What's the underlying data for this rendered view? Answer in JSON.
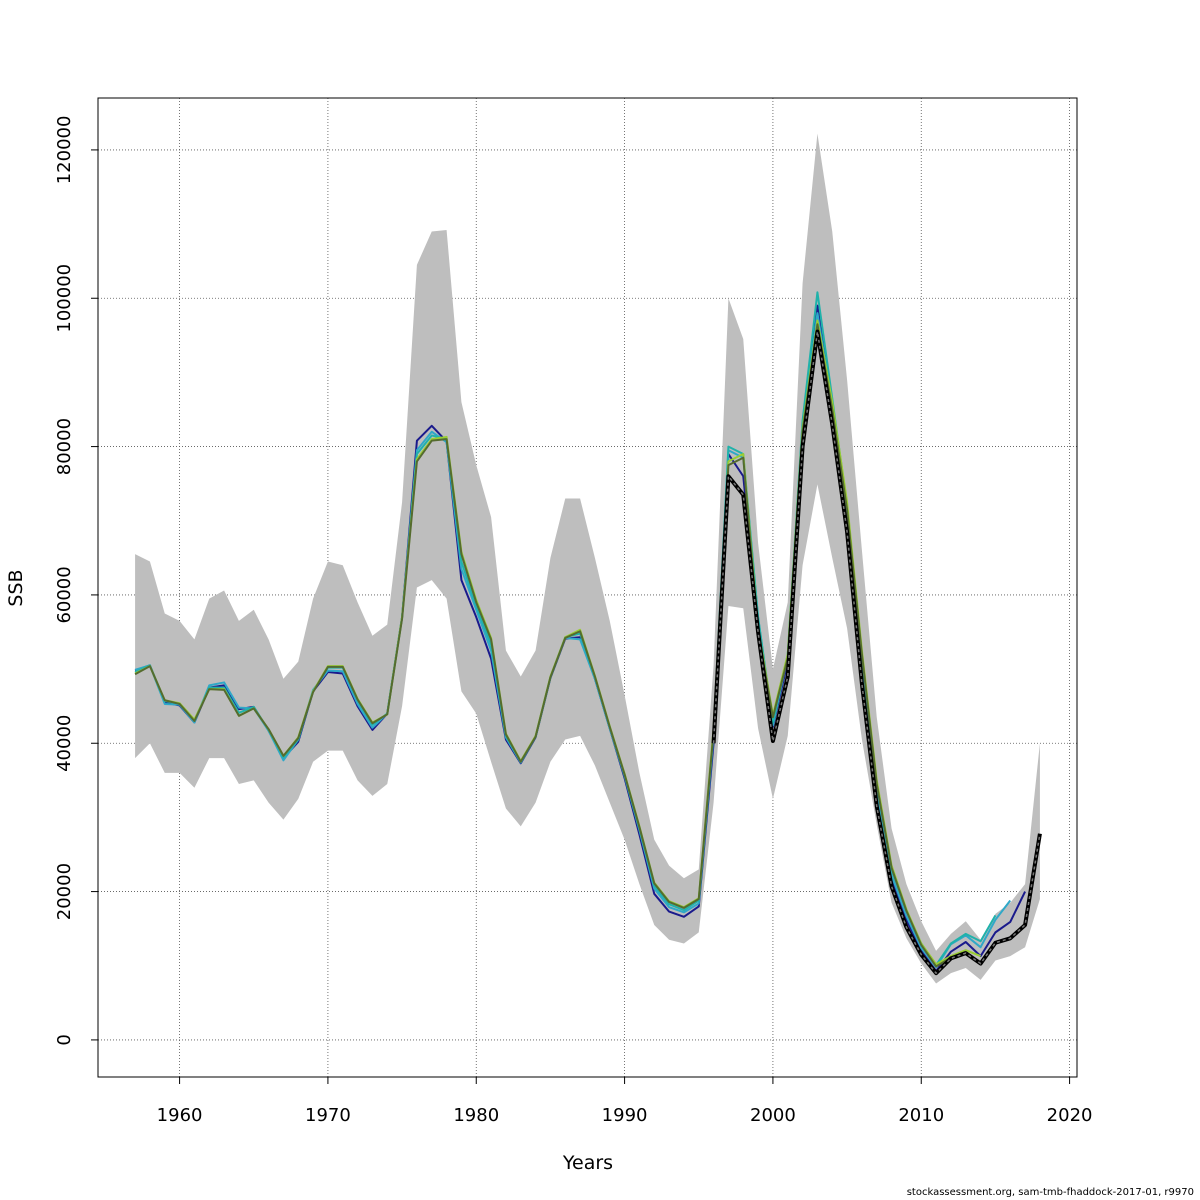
{
  "chart_data": {
    "type": "line",
    "title": "",
    "xlabel": "Years",
    "ylabel": "SSB",
    "xlim": [
      1954.5,
      2020.5
    ],
    "ylim": [
      -5000,
      127000
    ],
    "x_ticks": [
      1960,
      1970,
      1980,
      1990,
      2000,
      2010,
      2020
    ],
    "x_tick_labels": [
      "1960",
      "1970",
      "1980",
      "1990",
      "2000",
      "2010",
      "2020"
    ],
    "y_ticks": [
      0,
      20000,
      40000,
      60000,
      80000,
      100000,
      120000
    ],
    "y_tick_labels": [
      "0",
      "20000",
      "40000",
      "60000",
      "80000",
      "100000",
      "120000"
    ],
    "grid": true,
    "confidence_band": {
      "color": "#bebebe",
      "x": [
        1957,
        1958,
        1959,
        1960,
        1961,
        1962,
        1963,
        1964,
        1965,
        1966,
        1967,
        1968,
        1969,
        1970,
        1971,
        1972,
        1973,
        1974,
        1975,
        1976,
        1977,
        1978,
        1979,
        1980,
        1981,
        1982,
        1983,
        1984,
        1985,
        1986,
        1987,
        1988,
        1989,
        1990,
        1991,
        1992,
        1993,
        1994,
        1995,
        1996,
        1997,
        1998,
        1999,
        2000,
        2001,
        2002,
        2003,
        2004,
        2005,
        2006,
        2007,
        2008,
        2009,
        2010,
        2011,
        2012,
        2013,
        2014,
        2015,
        2016,
        2017,
        2018
      ],
      "lower": [
        38000,
        40000,
        36000,
        36000,
        34000,
        38000,
        38000,
        34500,
        35000,
        32000,
        29700,
        32500,
        37500,
        39000,
        39000,
        35000,
        32900,
        34500,
        45000,
        61000,
        62000,
        59500,
        47000,
        44000,
        37500,
        31200,
        28800,
        32000,
        37500,
        40500,
        41000,
        37000,
        32000,
        27000,
        21000,
        15500,
        13500,
        13000,
        14500,
        32000,
        58500,
        58200,
        42000,
        32500,
        41000,
        64000,
        74900,
        65000,
        55500,
        40500,
        29000,
        18500,
        13700,
        10300,
        7600,
        9000,
        9700,
        8100,
        10700,
        11300,
        12500,
        19000
      ],
      "upper": [
        65500,
        64500,
        57500,
        56500,
        54000,
        59500,
        60600,
        56500,
        58000,
        54000,
        48700,
        51000,
        59500,
        64500,
        64000,
        59000,
        54500,
        56000,
        72500,
        104500,
        109000,
        109200,
        86000,
        77500,
        70500,
        52500,
        49000,
        52500,
        65000,
        73000,
        73000,
        65000,
        56500,
        46500,
        36000,
        27000,
        23500,
        21800,
        23000,
        50500,
        100000,
        94500,
        67000,
        50000,
        59000,
        102000,
        122200,
        109000,
        89000,
        66000,
        43500,
        28500,
        21000,
        16000,
        12000,
        14300,
        16000,
        13500,
        17000,
        18500,
        21000,
        40000
      ]
    },
    "series": [
      {
        "color": "#1a1a8c",
        "dashed": false,
        "x": [
          1957,
          1958,
          1959,
          1960,
          1961,
          1962,
          1963,
          1964,
          1965,
          1966,
          1967,
          1968,
          1969,
          1970,
          1971,
          1972,
          1973,
          1974,
          1975,
          1976,
          1977,
          1978,
          1979,
          1980,
          1981,
          1982,
          1983,
          1984,
          1985,
          1986,
          1987,
          1988,
          1989,
          1990,
          1991,
          1992,
          1993,
          1994,
          1995,
          1996,
          1997,
          1998,
          1999,
          2000,
          2001,
          2002,
          2003,
          2004,
          2005,
          2006,
          2007,
          2008,
          2009,
          2010,
          2011,
          2012,
          2013,
          2014,
          2015,
          2016,
          2017
        ],
        "values": [
          49800,
          50500,
          45500,
          45100,
          42800,
          47500,
          47800,
          44600,
          44900,
          41700,
          38000,
          40200,
          47000,
          49600,
          49400,
          45000,
          41800,
          44000,
          57000,
          80800,
          82800,
          80700,
          62000,
          57000,
          51400,
          40500,
          37300,
          40800,
          48800,
          54100,
          54300,
          48700,
          42000,
          35300,
          27700,
          19700,
          17300,
          16600,
          18000,
          40000,
          79000,
          76000,
          56000,
          42200,
          51000,
          81500,
          99000,
          85000,
          70000,
          50000,
          33000,
          21800,
          16200,
          12000,
          9300,
          11900,
          13200,
          11300,
          14500,
          15900,
          20000
        ]
      },
      {
        "color": "#2fa8c8",
        "dashed": false,
        "x": [
          1957,
          1958,
          1959,
          1960,
          1961,
          1962,
          1963,
          1964,
          1965,
          1966,
          1967,
          1968,
          1969,
          1970,
          1971,
          1972,
          1973,
          1974,
          1975,
          1976,
          1977,
          1978,
          1979,
          1980,
          1981,
          1982,
          1983,
          1984,
          1985,
          1986,
          1987,
          1988,
          1989,
          1990,
          1991,
          1992,
          1993,
          1994,
          1995,
          1996,
          1997,
          1998,
          1999,
          2000,
          2001,
          2002,
          2003,
          2004,
          2005,
          2006,
          2007,
          2008,
          2009,
          2010,
          2011,
          2012,
          2013,
          2014,
          2015,
          2016
        ],
        "values": [
          49900,
          50500,
          45300,
          45200,
          42800,
          47800,
          48200,
          44800,
          44700,
          41700,
          37700,
          40500,
          47200,
          49800,
          49700,
          45300,
          42100,
          44000,
          57000,
          79500,
          82000,
          80600,
          63500,
          58000,
          52500,
          40800,
          37400,
          40900,
          48900,
          54200,
          54000,
          48700,
          42000,
          35600,
          28300,
          20400,
          17900,
          17200,
          18400,
          41000,
          79500,
          78500,
          57000,
          42400,
          51800,
          82500,
          98000,
          85500,
          71000,
          51000,
          33500,
          22200,
          16700,
          12400,
          9800,
          12900,
          14100,
          12500,
          16200,
          18800
        ]
      },
      {
        "color": "#20b2aa",
        "dashed": false,
        "x": [
          1957,
          1958,
          1959,
          1960,
          1961,
          1962,
          1963,
          1964,
          1965,
          1966,
          1967,
          1968,
          1969,
          1970,
          1971,
          1972,
          1973,
          1974,
          1975,
          1976,
          1977,
          1978,
          1979,
          1980,
          1981,
          1982,
          1983,
          1984,
          1985,
          1986,
          1987,
          1988,
          1989,
          1990,
          1991,
          1992,
          1993,
          1994,
          1995,
          1996,
          1997,
          1998,
          1999,
          2000,
          2001,
          2002,
          2003,
          2004,
          2005,
          2006,
          2007,
          2008,
          2009,
          2010,
          2011,
          2012,
          2013,
          2014,
          2015
        ],
        "values": [
          49600,
          50500,
          45700,
          45300,
          43100,
          47500,
          47500,
          44100,
          44900,
          41800,
          38100,
          40500,
          47000,
          50200,
          50200,
          45800,
          42500,
          44000,
          57000,
          79000,
          81500,
          81000,
          64500,
          58500,
          53300,
          41000,
          37500,
          40900,
          48900,
          54300,
          54800,
          48900,
          42200,
          35700,
          28500,
          20800,
          18300,
          17500,
          18800,
          41500,
          80000,
          79000,
          57000,
          42800,
          52000,
          83500,
          100800,
          86500,
          72000,
          52000,
          34500,
          23000,
          17400,
          13000,
          10100,
          13000,
          14300,
          13300,
          16800
        ]
      },
      {
        "color": "#9acd32",
        "dashed": false,
        "x": [
          1957,
          1958,
          1959,
          1960,
          1961,
          1962,
          1963,
          1964,
          1965,
          1966,
          1967,
          1968,
          1969,
          1970,
          1971,
          1972,
          1973,
          1974,
          1975,
          1976,
          1977,
          1978,
          1979,
          1980,
          1981,
          1982,
          1983,
          1984,
          1985,
          1986,
          1987,
          1988,
          1989,
          1990,
          1991,
          1992,
          1993,
          1994,
          1995,
          1996,
          1997,
          1998,
          1999,
          2000,
          2001,
          2002,
          2003,
          2004,
          2005,
          2006,
          2007,
          2008,
          2009,
          2010,
          2011,
          2012,
          2013,
          2014
        ],
        "values": [
          49400,
          50400,
          45800,
          45400,
          43200,
          47300,
          47300,
          43700,
          44700,
          41900,
          38300,
          40800,
          47000,
          50400,
          50400,
          46000,
          42800,
          43900,
          57000,
          78300,
          81000,
          81300,
          65800,
          59300,
          54200,
          41300,
          37600,
          41000,
          49000,
          54300,
          55300,
          49100,
          42300,
          35900,
          28800,
          21200,
          18700,
          17900,
          19100,
          42000,
          78000,
          79000,
          55500,
          43800,
          52000,
          82500,
          97000,
          86000,
          72500,
          52500,
          35000,
          23500,
          17600,
          13000,
          10200,
          11300,
          12100,
          11300
        ]
      },
      {
        "color": "#556b2f",
        "dashed": false,
        "x": [
          1957,
          1958,
          1959,
          1960,
          1961,
          1962,
          1963,
          1964,
          1965,
          1966,
          1967,
          1968,
          1969,
          1970,
          1971,
          1972,
          1973,
          1974,
          1975,
          1976,
          1977,
          1978,
          1979,
          1980,
          1981,
          1982,
          1983,
          1984,
          1985,
          1986,
          1987,
          1988,
          1989,
          1990,
          1991,
          1992,
          1993,
          1994,
          1995,
          1996,
          1997,
          1998,
          1999,
          2000,
          2001,
          2002,
          2003,
          2004,
          2005,
          2006,
          2007,
          2008,
          2009,
          2010,
          2011,
          2012,
          2013
        ],
        "values": [
          49300,
          50400,
          45800,
          45300,
          43000,
          47300,
          47200,
          43700,
          44700,
          41900,
          38300,
          40700,
          46900,
          50300,
          50300,
          45900,
          42700,
          43900,
          56800,
          78000,
          80800,
          81000,
          65500,
          59000,
          54000,
          41200,
          37500,
          40900,
          48900,
          54200,
          55100,
          49000,
          42200,
          35800,
          28700,
          21100,
          18600,
          17800,
          19000,
          41500,
          77500,
          78500,
          55000,
          43500,
          51500,
          82000,
          96500,
          85000,
          71500,
          52000,
          34500,
          23200,
          17400,
          12800,
          9900,
          11100,
          11900
        ]
      },
      {
        "color": "#000000",
        "dashed": true,
        "x": [
          1996,
          1997,
          1998,
          1999,
          2000,
          2001,
          2002,
          2003,
          2004,
          2005,
          2006,
          2007,
          2008,
          2009,
          2010,
          2011,
          2012,
          2013,
          2014,
          2015,
          2016,
          2017,
          2018
        ],
        "values": [
          40000,
          76000,
          73500,
          55000,
          40300,
          49000,
          80000,
          95500,
          83000,
          68500,
          48000,
          31500,
          20700,
          15200,
          11500,
          9000,
          11000,
          11700,
          10300,
          13100,
          13700,
          15500,
          27800
        ]
      }
    ]
  },
  "credit": "stockassessment.org, sam-tmb-fhaddock-2017-01, r9970"
}
